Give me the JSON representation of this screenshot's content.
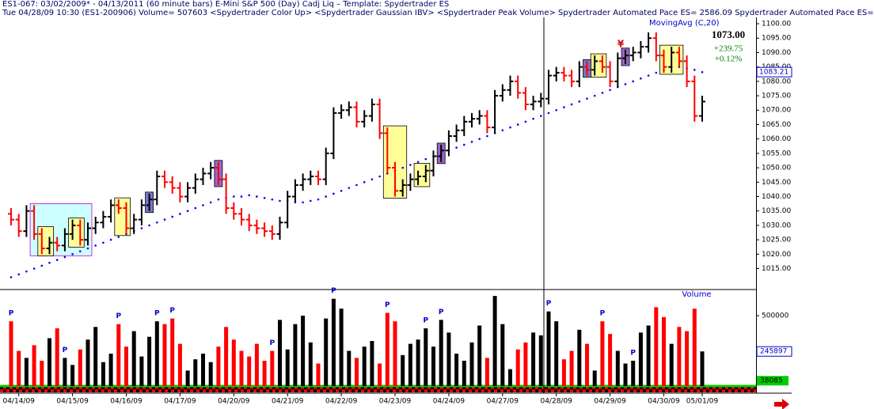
{
  "chart_data": {
    "type": "ohlc",
    "header_lines": [
      "ES1-067:  03/02/2009* - 04/13/2011  (60 minute bars)    E-Mini S&P 500 (Day) Cadj Liq   –   Template: Spydertrader ES",
      "Tue   04/28/09 10:30  (ES1-200906)   Volume= 507603   <Spydertrader Color Up>   <Spydertrader Gaussian IBV>   <Spydertrader Peak Volume>   Spydertrader Automated Pace ES= 2586.09   Spydertrader Automated Pace ES="
    ],
    "x": [
      null,
      "04/14/09",
      null,
      null,
      null,
      null,
      null,
      null,
      "04/15/09",
      null,
      null,
      null,
      null,
      null,
      null,
      "04/16/09",
      null,
      null,
      null,
      null,
      null,
      null,
      "04/17/09",
      null,
      null,
      null,
      null,
      null,
      null,
      "04/20/09",
      null,
      null,
      null,
      null,
      null,
      null,
      "04/21/09",
      null,
      null,
      null,
      null,
      null,
      null,
      "04/22/09",
      null,
      null,
      null,
      null,
      null,
      null,
      "04/23/09",
      null,
      null,
      null,
      null,
      null,
      null,
      "04/24/09",
      null,
      null,
      null,
      null,
      null,
      null,
      "04/27/09",
      null,
      null,
      null,
      null,
      null,
      null,
      "04/28/09",
      null,
      null,
      null,
      null,
      null,
      null,
      "04/29/09",
      null,
      null,
      null,
      null,
      null,
      null,
      "04/30/09",
      null,
      null,
      null,
      null,
      "05/01/09"
    ],
    "open": [
      1034,
      1032,
      1028,
      1035,
      1027,
      1022,
      1024,
      1023,
      1027,
      1030,
      1025,
      1029,
      1031,
      1033,
      1037,
      1036,
      1029,
      1032,
      1037,
      1039,
      1047,
      1045,
      1043,
      1040,
      1043,
      1046,
      1048,
      1050,
      1046,
      1036,
      1034,
      1032,
      1030,
      1029,
      1028,
      1027,
      1031,
      1040,
      1044,
      1046,
      1047,
      1046,
      1055,
      1069,
      1070,
      1071,
      1066,
      1068,
      1072,
      1062,
      1050,
      1042,
      1044,
      1046,
      1047,
      1049,
      1054,
      1056,
      1061,
      1063,
      1066,
      1067,
      1068,
      1064,
      1075,
      1077,
      1080,
      1076,
      1072,
      1073,
      1074,
      1082,
      1083,
      1082,
      1080,
      1085,
      1084,
      1087,
      1085,
      1080,
      1088,
      1089,
      1090,
      1092,
      1095,
      1089,
      1085,
      1090,
      1087,
      1080,
      1068
    ],
    "high": [
      1036,
      1034,
      1037,
      1037,
      1029,
      1026,
      1026,
      1029,
      1032,
      1032,
      1031,
      1033,
      1035,
      1039,
      1039,
      1038,
      1034,
      1039,
      1041,
      1049,
      1049,
      1047,
      1045,
      1045,
      1048,
      1050,
      1052,
      1052,
      1048,
      1038,
      1036,
      1034,
      1032,
      1031,
      1030,
      1033,
      1042,
      1046,
      1048,
      1049,
      1049,
      1057,
      1071,
      1072,
      1073,
      1073,
      1070,
      1074,
      1074,
      1064,
      1052,
      1046,
      1048,
      1049,
      1051,
      1056,
      1058,
      1063,
      1065,
      1068,
      1069,
      1070,
      1070,
      1077,
      1079,
      1082,
      1082,
      1078,
      1075,
      1076,
      1084,
      1085,
      1085,
      1084,
      1087,
      1087,
      1089,
      1089,
      1087,
      1090,
      1091,
      1092,
      1094,
      1097,
      1097,
      1091,
      1092,
      1092,
      1089,
      1082,
      1075
    ],
    "low": [
      1030,
      1026,
      1026,
      1025,
      1020,
      1020,
      1021,
      1021,
      1025,
      1023,
      1023,
      1027,
      1029,
      1031,
      1034,
      1027,
      1027,
      1030,
      1035,
      1037,
      1043,
      1041,
      1038,
      1038,
      1041,
      1044,
      1046,
      1044,
      1034,
      1032,
      1030,
      1028,
      1027,
      1026,
      1025,
      1025,
      1029,
      1038,
      1042,
      1044,
      1044,
      1044,
      1053,
      1067,
      1068,
      1064,
      1064,
      1066,
      1060,
      1048,
      1040,
      1040,
      1042,
      1044,
      1045,
      1047,
      1052,
      1054,
      1059,
      1061,
      1064,
      1065,
      1062,
      1062,
      1073,
      1075,
      1074,
      1070,
      1070,
      1071,
      1072,
      1080,
      1080,
      1078,
      1078,
      1082,
      1082,
      1083,
      1078,
      1078,
      1086,
      1087,
      1088,
      1090,
      1087,
      1083,
      1083,
      1085,
      1078,
      1066,
      1066
    ],
    "close": [
      1032,
      1028,
      1035,
      1027,
      1022,
      1024,
      1023,
      1027,
      1030,
      1025,
      1029,
      1031,
      1033,
      1037,
      1036,
      1029,
      1032,
      1037,
      1039,
      1047,
      1045,
      1043,
      1040,
      1043,
      1046,
      1048,
      1050,
      1046,
      1036,
      1034,
      1032,
      1030,
      1029,
      1028,
      1027,
      1031,
      1040,
      1044,
      1046,
      1047,
      1046,
      1055,
      1069,
      1070,
      1071,
      1066,
      1068,
      1072,
      1062,
      1050,
      1042,
      1044,
      1046,
      1047,
      1049,
      1054,
      1056,
      1061,
      1063,
      1066,
      1067,
      1068,
      1064,
      1075,
      1077,
      1080,
      1076,
      1072,
      1073,
      1074,
      1082,
      1083,
      1082,
      1080,
      1085,
      1084,
      1087,
      1085,
      1080,
      1088,
      1089,
      1090,
      1092,
      1095,
      1089,
      1085,
      1090,
      1087,
      1080,
      1068,
      1073
    ],
    "up_color": "#000000",
    "down_color": "#ff0000",
    "ylim": [
      1008,
      1102.2
    ],
    "yticks": [
      {
        "value": 1100,
        "label": "1100.00"
      },
      {
        "value": 1095,
        "label": "1095.00"
      },
      {
        "value": 1090,
        "label": "1090.00"
      },
      {
        "value": 1085,
        "label": "1085.00"
      },
      {
        "value": 1080,
        "label": "1080.00"
      },
      {
        "value": 1075,
        "label": "1075.00"
      },
      {
        "value": 1070,
        "label": "1070.00"
      },
      {
        "value": 1065,
        "label": "1065.00"
      },
      {
        "value": 1060,
        "label": "1060.00"
      },
      {
        "value": 1055,
        "label": "1055.00"
      },
      {
        "value": 1050,
        "label": "1050.00"
      },
      {
        "value": 1045,
        "label": "1045.00"
      },
      {
        "value": 1040,
        "label": "1040.00"
      },
      {
        "value": 1035,
        "label": "1035.00"
      },
      {
        "value": 1030,
        "label": "1030.00"
      },
      {
        "value": 1025,
        "label": "1025.00"
      },
      {
        "value": 1020,
        "label": "1020.00"
      },
      {
        "value": 1015,
        "label": "1015.00"
      }
    ],
    "moving_average": {
      "name": "MovingAvg (C,20)",
      "color": "#0000ff",
      "values": [
        1012,
        1013,
        1014,
        1015,
        1016,
        1017,
        1018,
        1019,
        1020,
        1021,
        1022,
        1023,
        1024,
        1025,
        1026,
        1027,
        1028,
        1029,
        1030,
        1031,
        1032,
        1033,
        1034,
        1035,
        1036,
        1037,
        1038,
        1039,
        1039.5,
        1040,
        1040,
        1040.5,
        1040,
        1039.5,
        1039,
        1038.5,
        1038.5,
        1038,
        1038,
        1038.5,
        1039,
        1040,
        1041,
        1042,
        1043,
        1044,
        1045,
        1046,
        1047,
        1048,
        1049,
        1050,
        1051,
        1052,
        1053,
        1054,
        1055,
        1056,
        1057,
        1058,
        1059,
        1060,
        1061,
        1062,
        1063,
        1064,
        1065,
        1066,
        1067,
        1068,
        1069,
        1070,
        1071,
        1072,
        1073,
        1074,
        1075,
        1076,
        1077,
        1078,
        1079,
        1080,
        1081,
        1082,
        1083,
        1084,
        1085,
        1085,
        1084.5,
        1084,
        1083.21
      ]
    },
    "last_price_label": "1073.00",
    "change_label": "+239.75",
    "pct_label": "+0.12%",
    "boxes": [
      {
        "from": 3,
        "to": 10,
        "color": "#ccffff"
      },
      {
        "from": 4,
        "to": 5,
        "color": "#ffff99"
      },
      {
        "from": 8,
        "to": 9,
        "color": "#ffff99"
      },
      {
        "from": 14,
        "to": 15,
        "color": "#ffff99"
      },
      {
        "from": 18,
        "to": 18,
        "color": "#7777cc"
      },
      {
        "from": 27,
        "to": 27,
        "color": "#9966cc"
      },
      {
        "from": 49,
        "to": 51,
        "color": "#ffff99"
      },
      {
        "from": 53,
        "to": 54,
        "color": "#ffff99"
      },
      {
        "from": 56,
        "to": 56,
        "color": "#9966cc"
      },
      {
        "from": 76,
        "to": 77,
        "color": "#ffff99"
      },
      {
        "from": 75,
        "to": 75,
        "color": "#7777cc"
      },
      {
        "from": 80,
        "to": 80,
        "color": "#9966cc"
      },
      {
        "from": 85,
        "to": 87,
        "color": "#ffff99"
      }
    ],
    "signal": {
      "label": "¥",
      "bar": 80,
      "color": "#dd0000"
    },
    "p_label": "P",
    "p_bars": [
      0,
      7,
      14,
      19,
      21,
      34,
      42,
      49,
      54,
      56,
      70,
      77,
      81
    ],
    "volume": {
      "title": "Volume",
      "values": [
        460000,
        250000,
        200000,
        290000,
        180000,
        340000,
        410000,
        200000,
        150000,
        260000,
        330000,
        420000,
        170000,
        230000,
        440000,
        280000,
        390000,
        210000,
        350000,
        460000,
        440000,
        480000,
        300000,
        110000,
        190000,
        230000,
        170000,
        280000,
        420000,
        330000,
        250000,
        210000,
        300000,
        180000,
        250000,
        470000,
        260000,
        440000,
        500000,
        310000,
        160000,
        480000,
        620000,
        550000,
        250000,
        200000,
        280000,
        320000,
        160000,
        520000,
        460000,
        220000,
        300000,
        330000,
        410000,
        280000,
        470000,
        380000,
        230000,
        180000,
        310000,
        430000,
        200000,
        640000,
        440000,
        120000,
        260000,
        310000,
        380000,
        360000,
        530000,
        460000,
        190000,
        250000,
        400000,
        300000,
        110000,
        460000,
        370000,
        250000,
        160000,
        180000,
        380000,
        430000,
        560000,
        490000,
        300000,
        420000,
        390000,
        550000,
        245897
      ],
      "ylim": [
        0,
        680000
      ],
      "yticks": [
        500000
      ],
      "tag": 38085
    }
  }
}
